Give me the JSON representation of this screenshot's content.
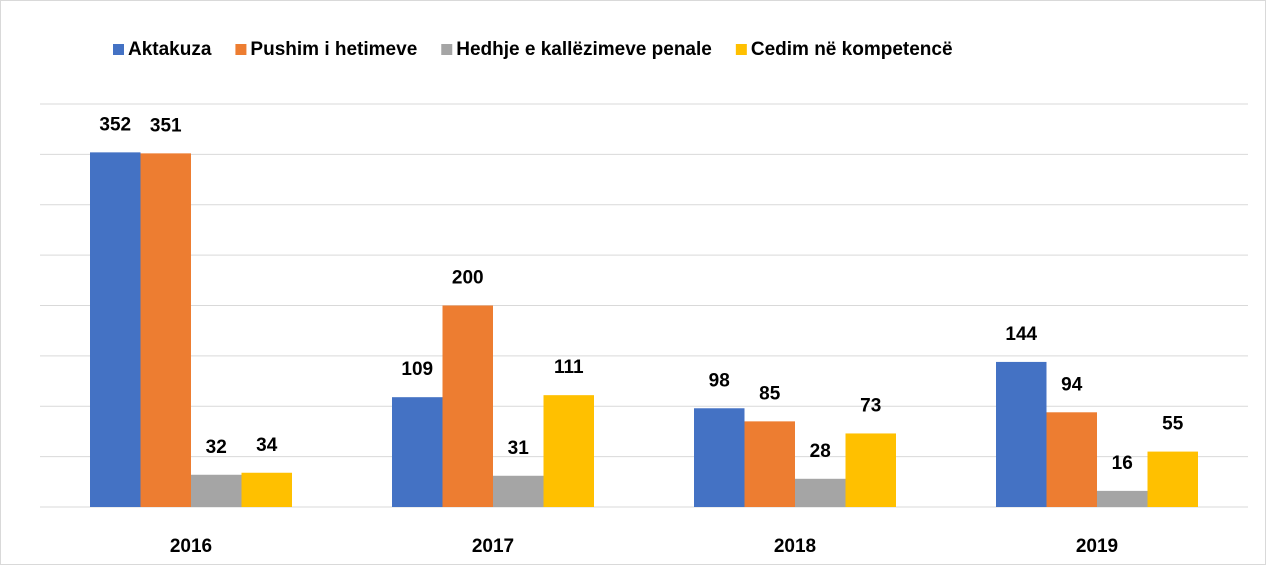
{
  "chart_data": {
    "type": "bar",
    "categories": [
      "2016",
      "2017",
      "2018",
      "2019"
    ],
    "series": [
      {
        "name": "Aktakuza",
        "color": "#4472c4",
        "values": [
          352,
          109,
          98,
          144
        ]
      },
      {
        "name": "Pushim i hetimeve",
        "color": "#ed7d31",
        "values": [
          351,
          200,
          85,
          94
        ]
      },
      {
        "name": "Hedhje e kallëzimeve penale",
        "color": "#a5a5a5",
        "values": [
          32,
          31,
          28,
          16
        ]
      },
      {
        "name": "Cedim në kompetencë",
        "color": "#ffc000",
        "values": [
          34,
          111,
          73,
          55
        ]
      }
    ],
    "ylim": [
      0,
      400
    ],
    "yticks": [
      0,
      50,
      100,
      150,
      200,
      250,
      300,
      350,
      400
    ],
    "grid": true,
    "legend": "top"
  }
}
